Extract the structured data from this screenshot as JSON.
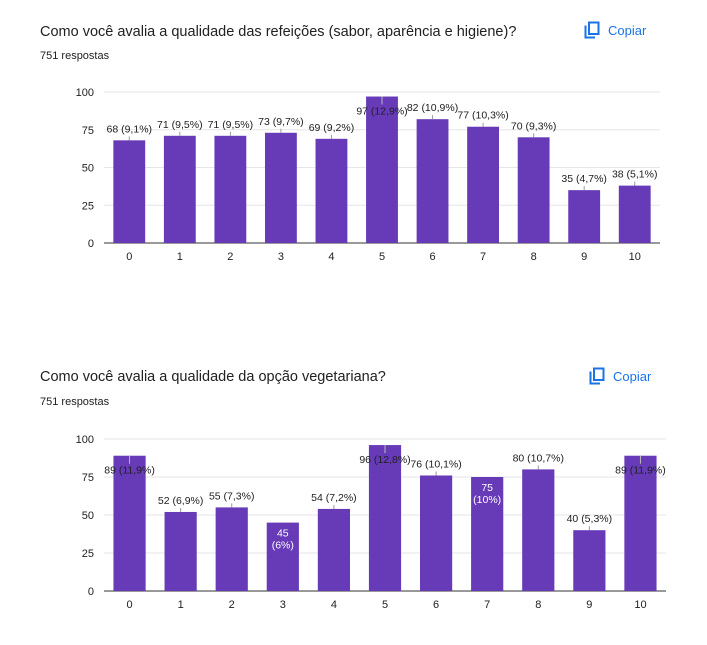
{
  "questions": [
    {
      "title": "Como você avalia a qualidade das refeições (sabor, aparência e higiene)?",
      "responses": "751 respostas",
      "copy_label": "Copiar",
      "copy_icon": "copy-icon"
    },
    {
      "title": "Como você avalia a qualidade da opção vegetariana?",
      "responses": "751 respostas",
      "copy_label": "Copiar",
      "copy_icon": "copy-icon"
    }
  ],
  "colors": {
    "bar": "#673ab7",
    "accent": "#1a73e8",
    "text": "#202124"
  },
  "chart_data": [
    {
      "type": "bar",
      "categories": [
        "0",
        "1",
        "2",
        "3",
        "4",
        "5",
        "6",
        "7",
        "8",
        "9",
        "10"
      ],
      "values": [
        68,
        71,
        71,
        73,
        69,
        97,
        82,
        77,
        70,
        35,
        38
      ],
      "labels": [
        "68 (9,1%)",
        "71 (9,5%)",
        "71 (9,5%)",
        "73 (9,7%)",
        "69 (9,2%)",
        "97 (12,9%)",
        "82 (10,9%)",
        "77 (10,3%)",
        "70 (9,3%)",
        "35 (4,7%)",
        "38 (5,1%)"
      ],
      "yticks": [
        "0",
        "25",
        "50",
        "75",
        "100"
      ],
      "ylim": [
        0,
        100
      ],
      "grid": true,
      "legend": "none"
    },
    {
      "type": "bar",
      "categories": [
        "0",
        "1",
        "2",
        "3",
        "4",
        "5",
        "6",
        "7",
        "8",
        "9",
        "10"
      ],
      "values": [
        89,
        52,
        55,
        45,
        54,
        96,
        76,
        75,
        80,
        40,
        89
      ],
      "labels": [
        "89 (11,9%)",
        "52 (6,9%)",
        "55 (7,3%)",
        "45 (6%)",
        "54 (7,2%)",
        "96 (12,8%)",
        "76 (10,1%)",
        "75 (10%)",
        "80 (10,7%)",
        "40 (5,3%)",
        "89 (11,9%)"
      ],
      "yticks": [
        "0",
        "25",
        "50",
        "75",
        "100"
      ],
      "ylim": [
        0,
        100
      ],
      "grid": true,
      "legend": "none"
    }
  ]
}
